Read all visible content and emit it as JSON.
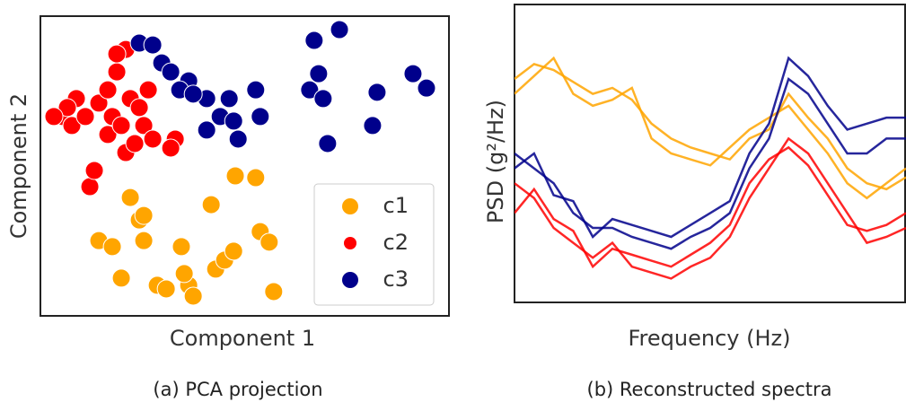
{
  "chart_data": [
    {
      "type": "scatter",
      "caption": "(a) PCA projection",
      "xlabel": "Component 1",
      "ylabel": "Component 2",
      "xlim": [
        0,
        100
      ],
      "ylim": [
        0,
        100
      ],
      "legend": "lower right",
      "series": [
        {
          "name": "c1",
          "color": "#ffa500",
          "x": [
            22.0,
            24.2,
            14.3,
            17.6,
            25.3,
            19.8,
            28.6,
            36.3,
            30.8,
            37.4,
            35.2,
            42.9,
            45.1,
            47.3,
            53.8,
            56.0,
            41.8,
            47.7,
            52.7,
            57.1,
            34.5,
            25.3
          ],
          "y": [
            39.5,
            32.0,
            25.1,
            23.1,
            25.1,
            12.6,
            10.2,
            10.2,
            9.0,
            6.6,
            14.1,
            15.6,
            18.6,
            21.6,
            28.1,
            24.6,
            37.1,
            46.7,
            46.1,
            8.1,
            23.1,
            33.5
          ]
        },
        {
          "name": "c2",
          "color": "#ff0000",
          "x": [
            12.1,
            13.2,
            5.5,
            7.7,
            11.0,
            14.3,
            16.5,
            18.7,
            20.9,
            18.7,
            22.0,
            24.2,
            25.3,
            27.5,
            33.0,
            31.9,
            20.9,
            23.1,
            16.5,
            8.8,
            6.6,
            3.3,
            17.6,
            26.4,
            19.8
          ],
          "y": [
            43.1,
            48.5,
            66.5,
            63.5,
            66.5,
            71.0,
            75.4,
            81.4,
            88.9,
            87.4,
            72.5,
            69.5,
            63.5,
            59.0,
            59.0,
            56.0,
            54.5,
            57.5,
            60.5,
            72.5,
            69.5,
            66.5,
            66.5,
            75.4,
            63.5
          ]
        },
        {
          "name": "c3",
          "color": "#00008b",
          "x": [
            24.2,
            27.5,
            29.7,
            31.9,
            36.3,
            34.1,
            40.7,
            37.4,
            44.0,
            47.3,
            40.7,
            48.4,
            52.7,
            53.8,
            67.0,
            73.2,
            68.1,
            65.9,
            69.2,
            82.4,
            81.3,
            70.3,
            91.2,
            94.5,
            46.2
          ],
          "y": [
            91.0,
            90.4,
            84.4,
            81.4,
            78.4,
            75.4,
            72.5,
            74.0,
            66.5,
            65.0,
            62.0,
            59.0,
            75.4,
            66.5,
            91.9,
            95.5,
            80.8,
            75.4,
            72.5,
            74.6,
            63.5,
            57.5,
            80.8,
            76.0,
            72.5
          ]
        }
      ]
    },
    {
      "type": "line",
      "caption": "(b) Reconstructed spectra",
      "xlabel": "Frequency (Hz)",
      "ylabel": "PSD (g²/Hz)",
      "xlim": [
        0,
        100
      ],
      "ylim": [
        0,
        100
      ],
      "x": [
        0,
        5,
        10,
        15,
        20,
        25,
        30,
        35,
        40,
        45,
        50,
        55,
        60,
        65,
        70,
        75,
        80,
        85,
        90,
        95,
        100
      ],
      "series": [
        {
          "color": "#ffa500",
          "values": [
            75,
            80,
            78,
            74,
            70,
            72,
            68,
            60,
            55,
            52,
            50,
            48,
            55,
            58,
            70,
            62,
            55,
            45,
            40,
            38,
            42
          ]
        },
        {
          "color": "#ffa500",
          "values": [
            70,
            76,
            82,
            70,
            66,
            68,
            72,
            55,
            50,
            48,
            46,
            52,
            58,
            62,
            66,
            58,
            50,
            40,
            35,
            40,
            45
          ]
        },
        {
          "color": "#ff0000",
          "values": [
            40,
            35,
            25,
            20,
            15,
            20,
            12,
            10,
            8,
            12,
            15,
            22,
            35,
            45,
            55,
            50,
            40,
            30,
            20,
            22,
            25
          ]
        },
        {
          "color": "#ff0000",
          "values": [
            30,
            38,
            28,
            24,
            12,
            18,
            16,
            14,
            12,
            16,
            20,
            26,
            40,
            48,
            52,
            46,
            36,
            26,
            24,
            26,
            30
          ]
        },
        {
          "color": "#00008b",
          "values": [
            50,
            45,
            40,
            30,
            25,
            25,
            22,
            20,
            18,
            22,
            25,
            30,
            45,
            55,
            75,
            70,
            60,
            50,
            50,
            55,
            55
          ]
        },
        {
          "color": "#00008b",
          "values": [
            45,
            50,
            36,
            34,
            22,
            28,
            26,
            24,
            22,
            26,
            30,
            34,
            50,
            60,
            82,
            76,
            66,
            58,
            60,
            62,
            62
          ]
        }
      ]
    }
  ]
}
